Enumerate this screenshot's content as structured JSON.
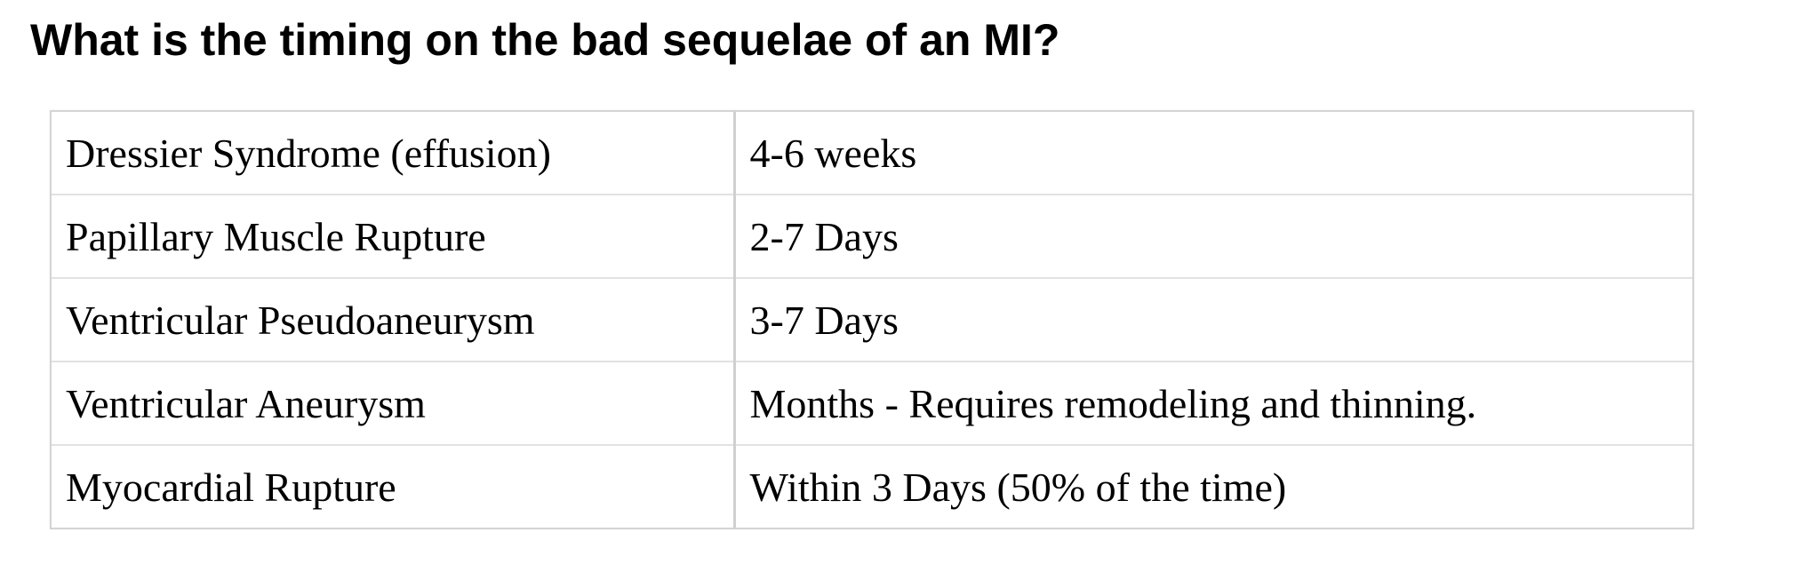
{
  "question": "What is the timing on the bad sequelae of an MI?",
  "table": {
    "rows": [
      {
        "condition": "Dressier Syndrome (effusion)",
        "timing": "4-6 weeks"
      },
      {
        "condition": "Papillary Muscle Rupture",
        "timing": "2-7 Days"
      },
      {
        "condition": "Ventricular Pseudoaneurysm",
        "timing": "3-7 Days"
      },
      {
        "condition": "Ventricular Aneurysm",
        "timing": "Months - Requires remodeling and thinning."
      },
      {
        "condition": "Myocardial Rupture",
        "timing": "Within 3 Days (50% of the time)"
      }
    ]
  }
}
